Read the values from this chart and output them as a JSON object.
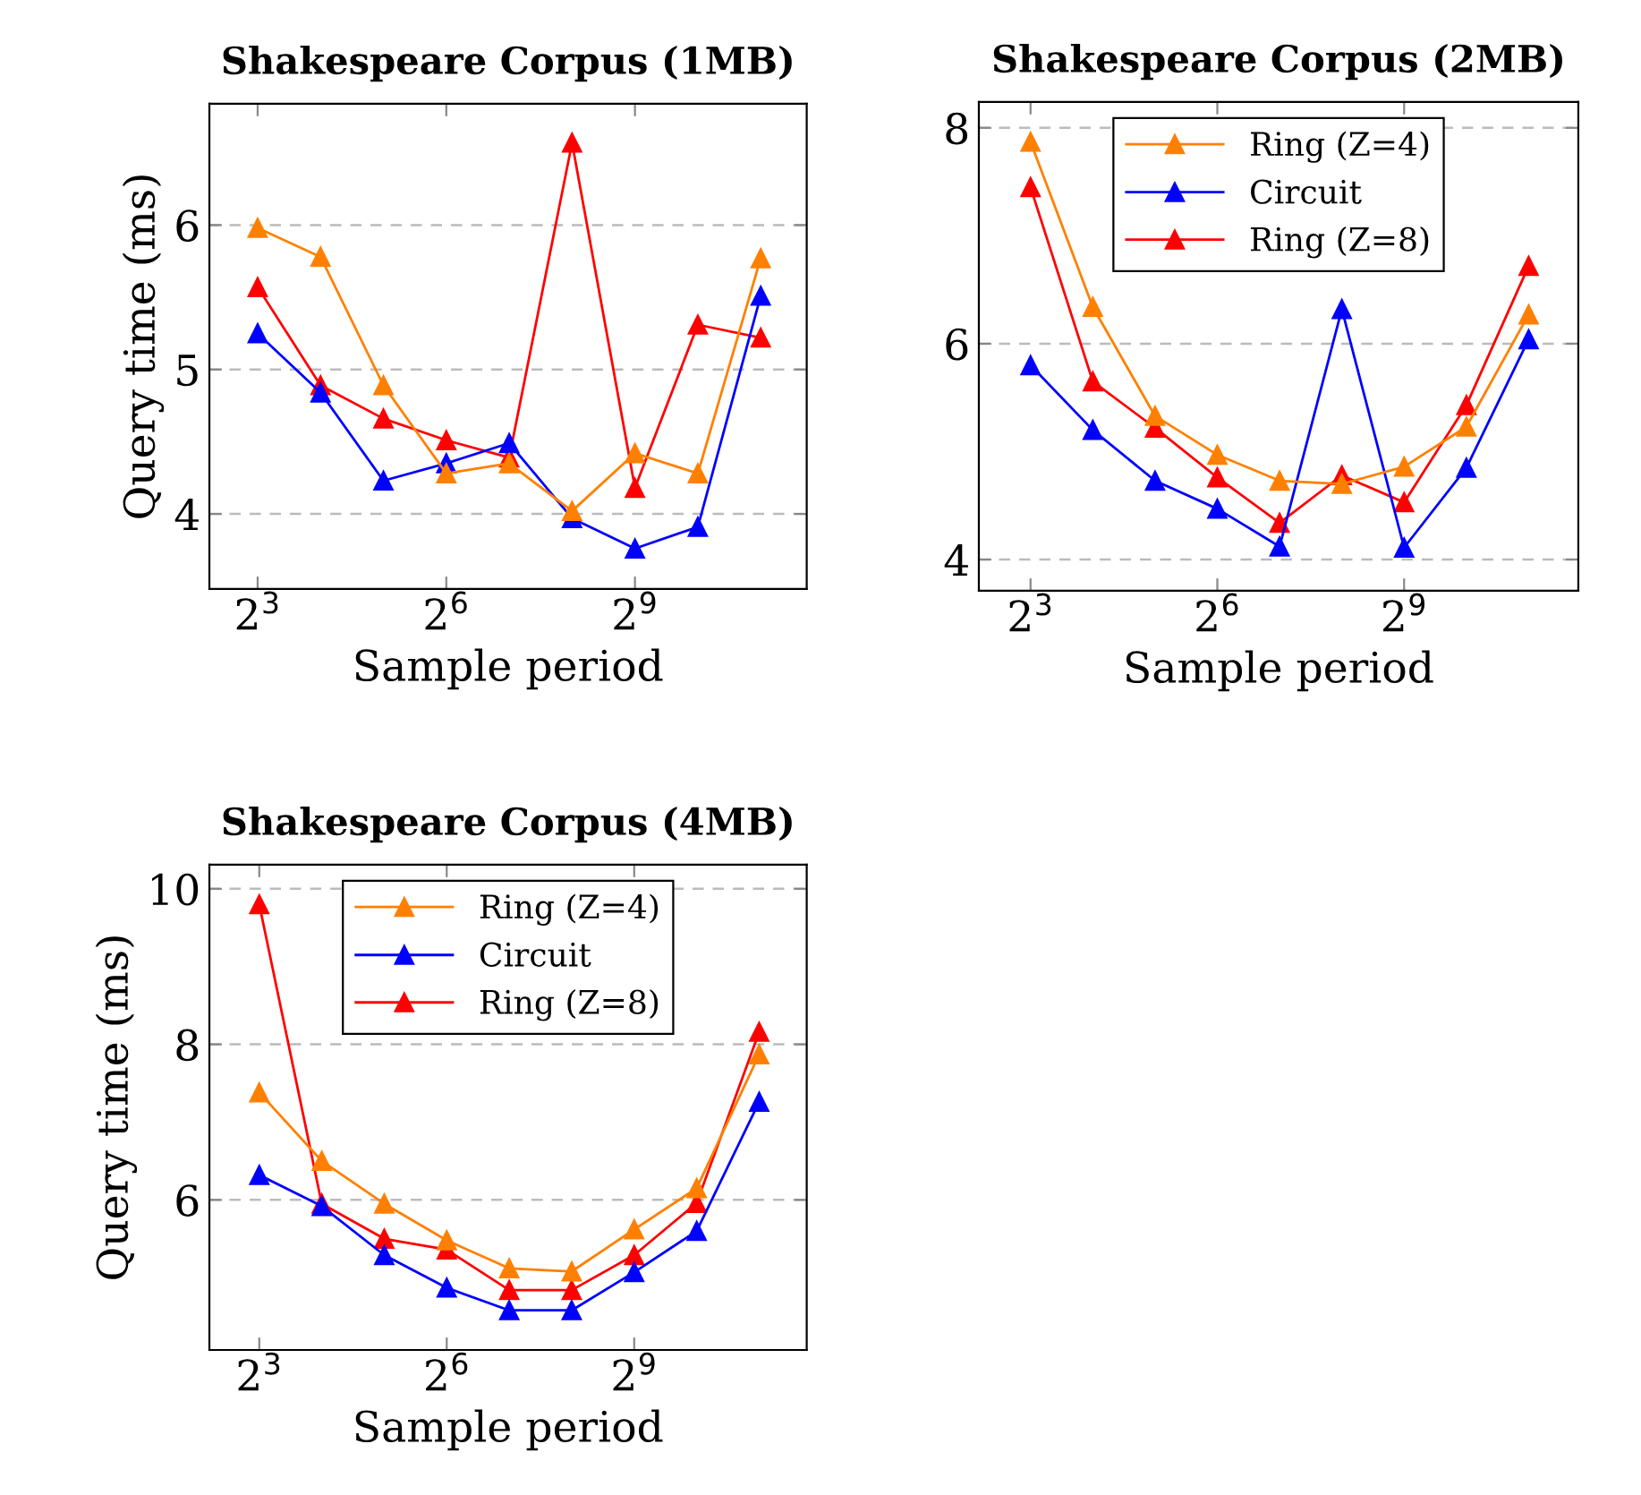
{
  "chart_data": [
    {
      "type": "line",
      "title": "Shakespeare Corpus (1MB)",
      "xlabel": "Sample period",
      "ylabel": "Query time (ms)",
      "log": "x",
      "x": [
        8,
        16,
        32,
        64,
        128,
        256,
        512,
        1024,
        2048
      ],
      "xlim": [
        4.7,
        3400
      ],
      "xticks": [
        {
          "value": 8,
          "label": "2$^{3}$"
        },
        {
          "value": 64,
          "label": "2$^{6}$"
        },
        {
          "value": 512,
          "label": "2$^{9}$"
        }
      ],
      "ylim": [
        3.48,
        6.84
      ],
      "yticks": [
        4,
        5,
        6
      ],
      "grid": "y",
      "marker": "triangle",
      "line_style": "solid",
      "legend": false,
      "series": [
        {
          "color": "#ff8000",
          "values": [
            5.98,
            5.78,
            4.89,
            4.28,
            4.35,
            4.02,
            4.42,
            4.28,
            5.77
          ]
        },
        {
          "color": "#0000ff",
          "values": [
            5.25,
            4.84,
            4.23,
            4.35,
            4.49,
            3.97,
            3.76,
            3.91,
            5.51
          ]
        },
        {
          "color": "#ff0000",
          "values": [
            5.57,
            4.89,
            4.66,
            4.51,
            4.39,
            6.57,
            4.18,
            5.31,
            5.22
          ]
        }
      ]
    },
    {
      "type": "line",
      "title": "Shakespeare Corpus (2MB)",
      "xlabel": "Sample period",
      "log": "x",
      "x": [
        8,
        16,
        32,
        64,
        128,
        256,
        512,
        1024,
        2048
      ],
      "xlim": [
        4.5,
        3560
      ],
      "xticks": [
        {
          "value": 8,
          "label": "2$^{3}$"
        },
        {
          "value": 64,
          "label": "2$^{6}$"
        },
        {
          "value": 512,
          "label": "2$^{9}$"
        }
      ],
      "ylim": [
        3.71,
        8.24
      ],
      "yticks": [
        4,
        6,
        8
      ],
      "grid": "y",
      "marker": "triangle",
      "line_style": "solid",
      "legend": "top",
      "series": [
        {
          "name": "Ring (Z=4)",
          "color": "#ff8000",
          "values": [
            7.87,
            6.34,
            5.33,
            4.97,
            4.73,
            4.7,
            4.86,
            5.23,
            6.27
          ]
        },
        {
          "name": "Circuit",
          "color": "#0000ff",
          "values": [
            5.8,
            5.2,
            4.73,
            4.47,
            4.12,
            6.32,
            4.11,
            4.85,
            6.04
          ]
        },
        {
          "name": "Ring (Z=8)",
          "color": "#ff0000",
          "values": [
            7.45,
            5.65,
            5.22,
            4.76,
            4.34,
            4.78,
            4.53,
            5.43,
            6.72
          ]
        }
      ]
    },
    {
      "type": "line",
      "title": "Shakespeare Corpus (4MB)",
      "xlabel": "Sample period",
      "ylabel": "Query time (ms)",
      "log": "x",
      "x": [
        8,
        16,
        32,
        64,
        128,
        256,
        512,
        1024,
        2048
      ],
      "xlim": [
        4.6,
        3470
      ],
      "xticks": [
        {
          "value": 8,
          "label": "2$^{3}$"
        },
        {
          "value": 64,
          "label": "2$^{6}$"
        },
        {
          "value": 512,
          "label": "2$^{9}$"
        }
      ],
      "ylim": [
        4.07,
        10.31
      ],
      "yticks": [
        6,
        8,
        10
      ],
      "grid": "y",
      "marker": "triangle",
      "line_style": "solid",
      "legend": "top",
      "series": [
        {
          "name": "Ring (Z=4)",
          "color": "#ff8000",
          "values": [
            7.38,
            6.5,
            5.95,
            5.48,
            5.12,
            5.08,
            5.62,
            6.15,
            7.87
          ]
        },
        {
          "name": "Circuit",
          "color": "#0000ff",
          "values": [
            6.32,
            5.92,
            5.29,
            4.87,
            4.58,
            4.58,
            5.07,
            5.6,
            7.26
          ]
        },
        {
          "name": "Ring (Z=8)",
          "color": "#ff0000",
          "values": [
            9.8,
            5.95,
            5.5,
            5.36,
            4.84,
            4.84,
            5.29,
            5.96,
            8.16
          ]
        }
      ]
    }
  ]
}
